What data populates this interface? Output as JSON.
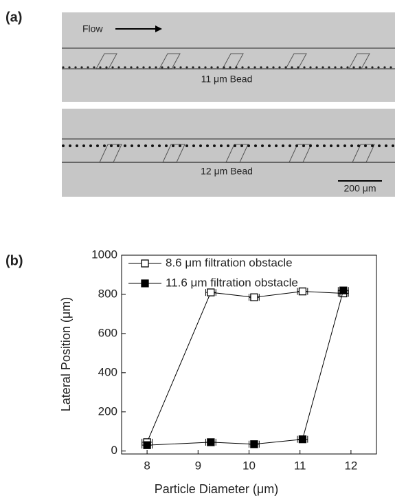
{
  "micrograph": {
    "panel_label": "(a)",
    "flow_label": "Flow",
    "top_caption": "11 μm Bead",
    "bottom_caption": "12 μm Bead",
    "scale_bar": "200 μm"
  },
  "chart_data": {
    "type": "line",
    "panel_label": "(b)",
    "x_label": "Particle Diameter (μm)",
    "y_label": "Lateral Position (μm)",
    "x": [
      8,
      9.25,
      10.1,
      11.05,
      11.85
    ],
    "series": [
      {
        "name": "8.6 μm filtration obstacle",
        "color": "#000000",
        "marker": "open-square",
        "values": [
          45,
          810,
          785,
          815,
          805
        ],
        "xerr": [
          0.1,
          0.1,
          0.1,
          0.1,
          0.1
        ]
      },
      {
        "name": "11.6 μm filtration obstacle",
        "color": "#000000",
        "marker": "filled-square",
        "values": [
          30,
          45,
          35,
          60,
          820
        ],
        "xerr": [
          0.1,
          0.1,
          0.1,
          0.1,
          0.1
        ]
      }
    ],
    "xlim": [
      7.5,
      12.5
    ],
    "ylim": [
      -15,
      1000
    ],
    "xticks": [
      8,
      9,
      10,
      11,
      12
    ],
    "yticks": [
      0,
      200,
      400,
      600,
      800,
      1000
    ],
    "legend": "upper-left"
  }
}
